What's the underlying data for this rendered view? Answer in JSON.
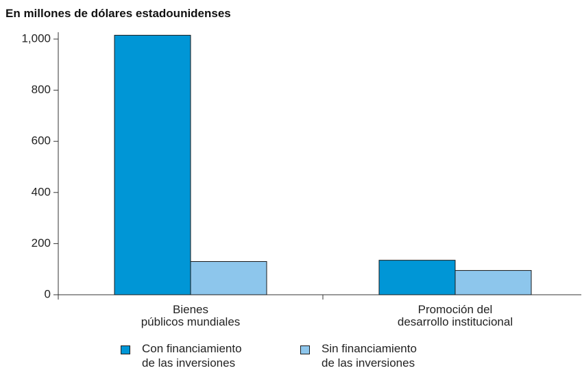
{
  "chart_data": {
    "type": "bar",
    "title": "En millones de dólares estadounidenses",
    "categories": [
      "Bienes\npúblicos mundiales",
      "Promoción del\ndesarrollo institucional"
    ],
    "series": [
      {
        "name": "Con financiamiento\nde las inversiones",
        "color": "#0096d6",
        "values": [
          1015,
          135
        ]
      },
      {
        "name": "Sin financiamiento\nde las inversiones",
        "color": "#8dc6ec",
        "values": [
          130,
          95
        ]
      }
    ],
    "ylim": [
      0,
      1000
    ],
    "yticks": [
      0,
      200,
      400,
      600,
      800,
      {
        "value": 1000,
        "label": "1,000"
      }
    ]
  }
}
